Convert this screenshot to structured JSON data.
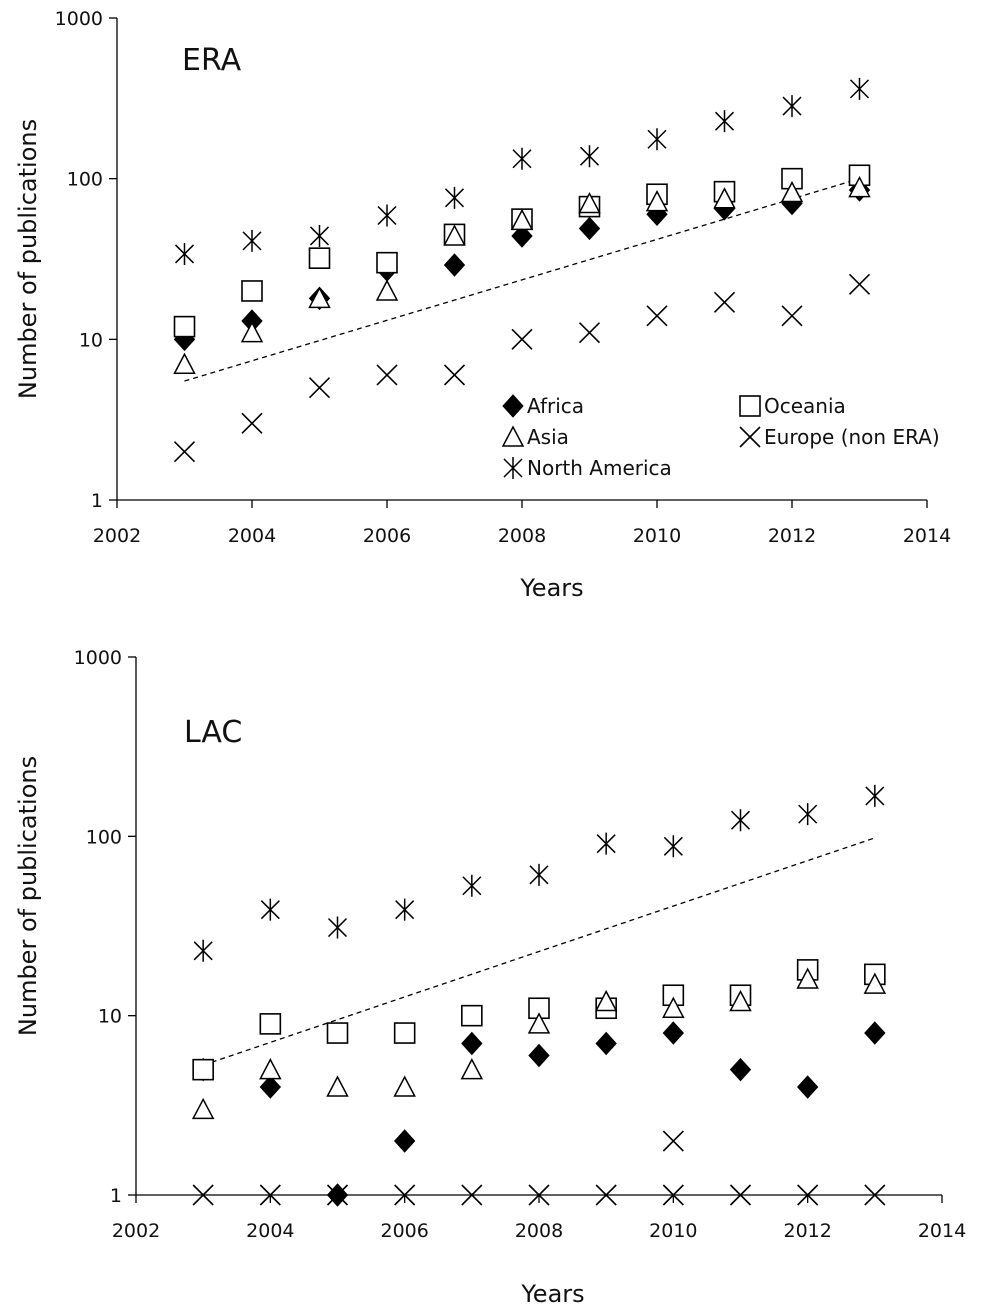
{
  "chart_data": [
    {
      "type": "scatter",
      "title": "ERA",
      "xlabel": "Years",
      "ylabel": "Number of publications",
      "xlim": [
        2002,
        2014
      ],
      "ylim": [
        1,
        1000
      ],
      "y_scale": "log",
      "x_ticks": [
        2002,
        2004,
        2006,
        2008,
        2010,
        2012,
        2014
      ],
      "y_ticks": [
        1,
        10,
        100,
        1000
      ],
      "grid": false,
      "legend_position": "inside-bottom-right",
      "x": [
        2003,
        2004,
        2005,
        2006,
        2007,
        2008,
        2009,
        2010,
        2011,
        2012,
        2013
      ],
      "series": [
        {
          "name": "Africa",
          "marker": "filled-diamond",
          "values": [
            10,
            13,
            18,
            27,
            29,
            44,
            49,
            60,
            65,
            70,
            85
          ]
        },
        {
          "name": "Oceania",
          "marker": "open-square",
          "values": [
            12,
            20,
            32,
            30,
            45,
            56,
            67,
            80,
            83,
            100,
            105
          ]
        },
        {
          "name": "Asia",
          "marker": "open-triangle",
          "values": [
            7,
            11,
            18,
            20,
            44,
            55,
            70,
            72,
            75,
            82,
            88
          ]
        },
        {
          "name": "Europe (non ERA)",
          "marker": "x-cross",
          "values": [
            2,
            3,
            5,
            6,
            6,
            10,
            11,
            14,
            17,
            14,
            22
          ]
        },
        {
          "name": "North America",
          "marker": "asterisk",
          "values": [
            34,
            41,
            44,
            59,
            76,
            133,
            138,
            176,
            228,
            283,
            362
          ]
        }
      ],
      "trendline": {
        "style": "dashed",
        "x": [
          2003,
          2013
        ],
        "y": [
          5.5,
          100
        ]
      }
    },
    {
      "type": "scatter",
      "title": "LAC",
      "xlabel": "Years",
      "ylabel": "Number of publications",
      "xlim": [
        2002,
        2014
      ],
      "ylim": [
        1,
        1000
      ],
      "y_scale": "log",
      "x_ticks": [
        2002,
        2004,
        2006,
        2008,
        2010,
        2012,
        2014
      ],
      "y_ticks": [
        1,
        10,
        100,
        1000
      ],
      "grid": false,
      "series": [
        {
          "name": "Africa",
          "marker": "filled-diamond",
          "x": [
            2003,
            2004,
            2005,
            2006,
            2007,
            2008,
            2009,
            2010,
            2011,
            2012,
            2013
          ],
          "values": [
            5,
            4,
            1,
            2,
            7,
            6,
            7,
            8,
            5,
            4,
            8
          ]
        },
        {
          "name": "Oceania",
          "marker": "open-square",
          "x": [
            2003,
            2004,
            2005,
            2006,
            2007,
            2008,
            2009,
            2010,
            2011,
            2012,
            2013
          ],
          "values": [
            5,
            9,
            8,
            8,
            10,
            11,
            11,
            13,
            13,
            18,
            17
          ]
        },
        {
          "name": "Asia",
          "marker": "open-triangle",
          "x": [
            2003,
            2004,
            2005,
            2006,
            2007,
            2008,
            2009,
            2010,
            2011,
            2012,
            2013
          ],
          "values": [
            3,
            5,
            4,
            4,
            5,
            9,
            12,
            11,
            12,
            16,
            15
          ]
        },
        {
          "name": "Europe (non ERA)",
          "marker": "x-cross",
          "x": [
            2003,
            2004,
            2005,
            2006,
            2007,
            2008,
            2009,
            2010,
            2010,
            2011,
            2012,
            2013
          ],
          "values": [
            1,
            1,
            1,
            1,
            1,
            1,
            1,
            1,
            2,
            1,
            1,
            1
          ]
        },
        {
          "name": "North America",
          "marker": "asterisk",
          "x": [
            2003,
            2004,
            2005,
            2006,
            2007,
            2008,
            2009,
            2010,
            2011,
            2012,
            2013
          ],
          "values": [
            23,
            39,
            31,
            39,
            53,
            61,
            91,
            88,
            123,
            133,
            168
          ]
        }
      ],
      "trendline": {
        "style": "dashed",
        "x": [
          2003,
          2013
        ],
        "y": [
          5.3,
          98
        ]
      }
    }
  ]
}
